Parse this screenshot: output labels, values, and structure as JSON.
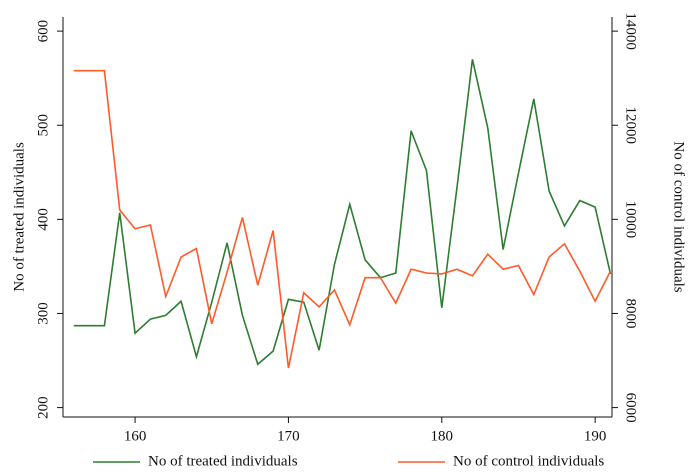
{
  "chart_data": {
    "type": "line",
    "y_label": "No of treated individuals",
    "y2_label": "No of control individuals",
    "x": [
      156,
      157,
      158,
      159,
      160,
      161,
      162,
      163,
      164,
      165,
      166,
      167,
      168,
      169,
      170,
      171,
      172,
      173,
      174,
      175,
      176,
      177,
      178,
      179,
      180,
      181,
      182,
      183,
      184,
      185,
      186,
      187,
      188,
      189,
      190,
      191
    ],
    "series": [
      {
        "name": "No of treated individuals",
        "color": "#2e7d32",
        "values": [
          287,
          287,
          287,
          407,
          279,
          294,
          298,
          313,
          254,
          312,
          375,
          298,
          246,
          260,
          315,
          312,
          261,
          352,
          416,
          357,
          338,
          343,
          494,
          452,
          306,
          435,
          570,
          497,
          368,
          449,
          528,
          430,
          393,
          420,
          413,
          342
        ]
      },
      {
        "name": "No of control individuals",
        "color": "#ff5a28",
        "axis": "y2",
        "values": [
          13160,
          13160,
          13160,
          10200,
          9800,
          9880,
          8360,
          9200,
          9380,
          7780,
          8880,
          10040,
          8600,
          9760,
          6840,
          8440,
          8140,
          8500,
          7760,
          8760,
          8760,
          8220,
          8940,
          8860,
          8840,
          8940,
          8800,
          9260,
          8940,
          9020,
          8400,
          9200,
          9480,
          8900,
          8260,
          8900
        ]
      }
    ],
    "xlim": [
      155.3,
      191.1
    ],
    "xticks": [
      160,
      170,
      180,
      190
    ],
    "ylim": [
      190,
      615
    ],
    "yticks": [
      200,
      300,
      400,
      500,
      600
    ],
    "y2lim": [
      5800,
      14300
    ],
    "y2ticks": [
      6000,
      8000,
      10000,
      12000,
      14000
    ],
    "legend": "bottom"
  }
}
